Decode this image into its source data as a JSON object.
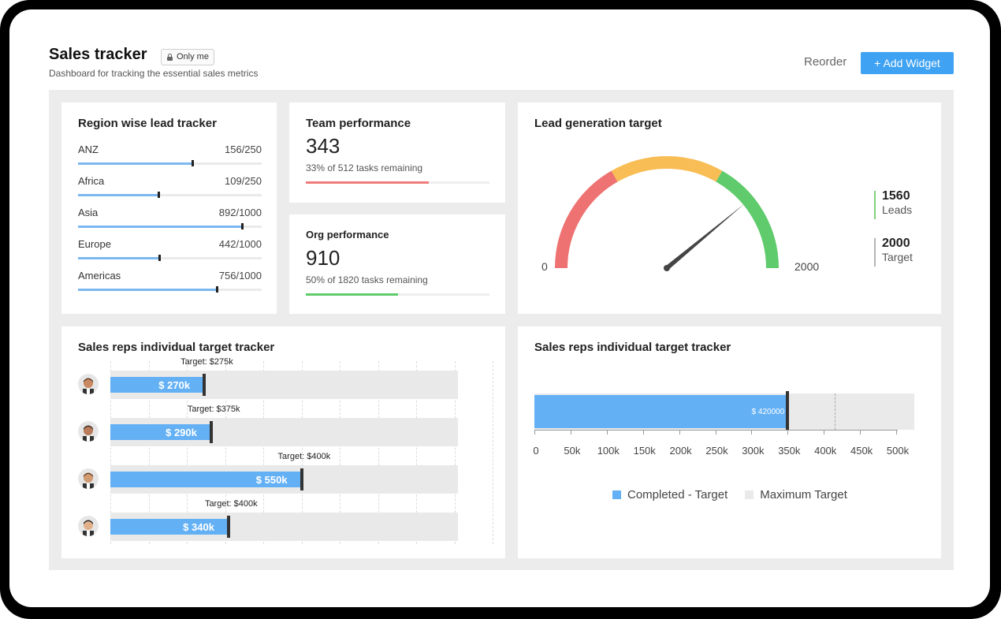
{
  "header": {
    "title": "Sales tracker",
    "badge": "Only me",
    "subtitle": "Dashboard for tracking the essential sales metrics",
    "reorder": "Reorder",
    "add_widget": "+ Add Widget"
  },
  "region": {
    "title": "Region wise lead tracker",
    "rows": [
      {
        "name": "ANZ",
        "value": "156/250",
        "fraction": 0.624
      },
      {
        "name": "Africa",
        "value": "109/250",
        "fraction": 0.436
      },
      {
        "name": "Asia",
        "value": "892/1000",
        "fraction": 0.892
      },
      {
        "name": "Europe",
        "value": "442/1000",
        "fraction": 0.442
      },
      {
        "name": "Americas",
        "value": "756/1000",
        "fraction": 0.756
      }
    ],
    "bar_color": "#7cb8f0"
  },
  "team": {
    "title": "Team performance",
    "value": "343",
    "sub": "33% of 512 tasks remaining",
    "fraction": 0.67,
    "color": "#f07b7b"
  },
  "org": {
    "title": "Org performance",
    "value": "910",
    "sub": "50% of 1820 tasks remaining",
    "fraction": 0.5,
    "color": "#5fcb6c"
  },
  "gauge": {
    "title": "Lead generation target",
    "min_label": "0",
    "max_label": "2000",
    "value": 1560,
    "max": 2000,
    "colors": {
      "low": "#ee7272",
      "mid": "#f8bd55",
      "high": "#5fcb6c"
    },
    "legend": [
      {
        "num": "1560",
        "text": "Leads",
        "color": "#7ed07f"
      },
      {
        "num": "2000",
        "text": "Target",
        "color": "#b5b5b5"
      }
    ]
  },
  "reps": {
    "title": "Sales reps individual target tracker",
    "rows": [
      {
        "label": "$ 270k",
        "value": 270,
        "target": 275,
        "target_label": "Target: $275k"
      },
      {
        "label": "$ 290k",
        "value": 290,
        "target": 375,
        "target_label": "Target: $375k"
      },
      {
        "label": "$ 550k",
        "value": 550,
        "target": 400,
        "target_label": "Target: $400k"
      },
      {
        "label": "$ 340k",
        "value": 340,
        "target": 400,
        "target_label": "Target: $400k"
      }
    ],
    "max": 1000,
    "fill_color": "#63b0f5"
  },
  "chart_data": {
    "type": "bar",
    "title": "Sales reps individual target tracker",
    "series": [
      {
        "name": "Completed - Target",
        "values": [
          350000
        ]
      },
      {
        "name": "Maximum Target",
        "values": [
          525000
        ]
      }
    ],
    "bar_label": "$ 420000",
    "x_ticks": [
      "0",
      "50k",
      "100k",
      "150k",
      "200k",
      "250k",
      "300k",
      "350k",
      "400k",
      "450k",
      "500k"
    ],
    "xlim": [
      0,
      500000
    ],
    "marker": 415000,
    "legend": [
      {
        "label": "Completed - Target",
        "color": "#63b0f5"
      },
      {
        "label": "Maximum Target",
        "color": "#eaeaea"
      }
    ],
    "legend_position": "bottom"
  }
}
